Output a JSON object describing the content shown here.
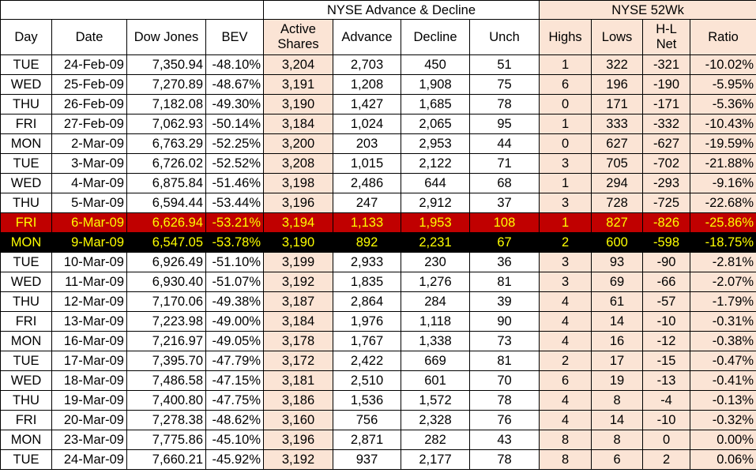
{
  "group_headers": {
    "blank": "",
    "advance_decline": "NYSE Advance & Decline",
    "week52": "NYSE 52Wk"
  },
  "columns": [
    "Day",
    "Date",
    "Dow Jones",
    "BEV",
    "Active Shares",
    "Advance",
    "Decline",
    "Unch",
    "Highs",
    "Lows",
    "H-L Net",
    "Ratio"
  ],
  "colors": {
    "peach": "#fbe4d5",
    "highlight_red": "#c00000",
    "highlight_black": "#000000",
    "highlight_text": "#ffff00"
  },
  "rows": [
    {
      "day": "TUE",
      "date": "24-Feb-09",
      "dow": "7,350.94",
      "bev": "-48.10%",
      "active": "3,204",
      "advance": "2,703",
      "decline": "450",
      "unch": "51",
      "highs": "1",
      "lows": "322",
      "net": "-321",
      "ratio": "-10.02%",
      "highlight": ""
    },
    {
      "day": "WED",
      "date": "25-Feb-09",
      "dow": "7,270.89",
      "bev": "-48.67%",
      "active": "3,191",
      "advance": "1,208",
      "decline": "1,908",
      "unch": "75",
      "highs": "6",
      "lows": "196",
      "net": "-190",
      "ratio": "-5.95%",
      "highlight": ""
    },
    {
      "day": "THU",
      "date": "26-Feb-09",
      "dow": "7,182.08",
      "bev": "-49.30%",
      "active": "3,190",
      "advance": "1,427",
      "decline": "1,685",
      "unch": "78",
      "highs": "0",
      "lows": "171",
      "net": "-171",
      "ratio": "-5.36%",
      "highlight": ""
    },
    {
      "day": "FRI",
      "date": "27-Feb-09",
      "dow": "7,062.93",
      "bev": "-50.14%",
      "active": "3,184",
      "advance": "1,024",
      "decline": "2,065",
      "unch": "95",
      "highs": "1",
      "lows": "333",
      "net": "-332",
      "ratio": "-10.43%",
      "highlight": ""
    },
    {
      "day": "MON",
      "date": "2-Mar-09",
      "dow": "6,763.29",
      "bev": "-52.25%",
      "active": "3,200",
      "advance": "203",
      "decline": "2,953",
      "unch": "44",
      "highs": "0",
      "lows": "627",
      "net": "-627",
      "ratio": "-19.59%",
      "highlight": ""
    },
    {
      "day": "TUE",
      "date": "3-Mar-09",
      "dow": "6,726.02",
      "bev": "-52.52%",
      "active": "3,208",
      "advance": "1,015",
      "decline": "2,122",
      "unch": "71",
      "highs": "3",
      "lows": "705",
      "net": "-702",
      "ratio": "-21.88%",
      "highlight": ""
    },
    {
      "day": "WED",
      "date": "4-Mar-09",
      "dow": "6,875.84",
      "bev": "-51.46%",
      "active": "3,198",
      "advance": "2,486",
      "decline": "644",
      "unch": "68",
      "highs": "1",
      "lows": "294",
      "net": "-293",
      "ratio": "-9.16%",
      "highlight": ""
    },
    {
      "day": "THU",
      "date": "5-Mar-09",
      "dow": "6,594.44",
      "bev": "-53.44%",
      "active": "3,196",
      "advance": "247",
      "decline": "2,912",
      "unch": "37",
      "highs": "3",
      "lows": "728",
      "net": "-725",
      "ratio": "-22.68%",
      "highlight": ""
    },
    {
      "day": "FRI",
      "date": "6-Mar-09",
      "dow": "6,626.94",
      "bev": "-53.21%",
      "active": "3,194",
      "advance": "1,133",
      "decline": "1,953",
      "unch": "108",
      "highs": "1",
      "lows": "827",
      "net": "-826",
      "ratio": "-25.86%",
      "highlight": "red"
    },
    {
      "day": "MON",
      "date": "9-Mar-09",
      "dow": "6,547.05",
      "bev": "-53.78%",
      "active": "3,190",
      "advance": "892",
      "decline": "2,231",
      "unch": "67",
      "highs": "2",
      "lows": "600",
      "net": "-598",
      "ratio": "-18.75%",
      "highlight": "black"
    },
    {
      "day": "TUE",
      "date": "10-Mar-09",
      "dow": "6,926.49",
      "bev": "-51.10%",
      "active": "3,199",
      "advance": "2,933",
      "decline": "230",
      "unch": "36",
      "highs": "3",
      "lows": "93",
      "net": "-90",
      "ratio": "-2.81%",
      "highlight": ""
    },
    {
      "day": "WED",
      "date": "11-Mar-09",
      "dow": "6,930.40",
      "bev": "-51.07%",
      "active": "3,192",
      "advance": "1,835",
      "decline": "1,276",
      "unch": "81",
      "highs": "3",
      "lows": "69",
      "net": "-66",
      "ratio": "-2.07%",
      "highlight": ""
    },
    {
      "day": "THU",
      "date": "12-Mar-09",
      "dow": "7,170.06",
      "bev": "-49.38%",
      "active": "3,187",
      "advance": "2,864",
      "decline": "284",
      "unch": "39",
      "highs": "4",
      "lows": "61",
      "net": "-57",
      "ratio": "-1.79%",
      "highlight": ""
    },
    {
      "day": "FRI",
      "date": "13-Mar-09",
      "dow": "7,223.98",
      "bev": "-49.00%",
      "active": "3,184",
      "advance": "1,976",
      "decline": "1,118",
      "unch": "90",
      "highs": "4",
      "lows": "14",
      "net": "-10",
      "ratio": "-0.31%",
      "highlight": ""
    },
    {
      "day": "MON",
      "date": "16-Mar-09",
      "dow": "7,216.97",
      "bev": "-49.05%",
      "active": "3,178",
      "advance": "1,767",
      "decline": "1,338",
      "unch": "73",
      "highs": "4",
      "lows": "16",
      "net": "-12",
      "ratio": "-0.38%",
      "highlight": ""
    },
    {
      "day": "TUE",
      "date": "17-Mar-09",
      "dow": "7,395.70",
      "bev": "-47.79%",
      "active": "3,172",
      "advance": "2,422",
      "decline": "669",
      "unch": "81",
      "highs": "2",
      "lows": "17",
      "net": "-15",
      "ratio": "-0.47%",
      "highlight": ""
    },
    {
      "day": "WED",
      "date": "18-Mar-09",
      "dow": "7,486.58",
      "bev": "-47.15%",
      "active": "3,181",
      "advance": "2,510",
      "decline": "601",
      "unch": "70",
      "highs": "6",
      "lows": "19",
      "net": "-13",
      "ratio": "-0.41%",
      "highlight": ""
    },
    {
      "day": "THU",
      "date": "19-Mar-09",
      "dow": "7,400.80",
      "bev": "-47.75%",
      "active": "3,186",
      "advance": "1,536",
      "decline": "1,572",
      "unch": "78",
      "highs": "4",
      "lows": "8",
      "net": "-4",
      "ratio": "-0.13%",
      "highlight": ""
    },
    {
      "day": "FRI",
      "date": "20-Mar-09",
      "dow": "7,278.38",
      "bev": "-48.62%",
      "active": "3,160",
      "advance": "756",
      "decline": "2,328",
      "unch": "76",
      "highs": "4",
      "lows": "14",
      "net": "-10",
      "ratio": "-0.32%",
      "highlight": ""
    },
    {
      "day": "MON",
      "date": "23-Mar-09",
      "dow": "7,775.86",
      "bev": "-45.10%",
      "active": "3,196",
      "advance": "2,871",
      "decline": "282",
      "unch": "43",
      "highs": "8",
      "lows": "8",
      "net": "0",
      "ratio": "0.00%",
      "highlight": ""
    },
    {
      "day": "TUE",
      "date": "24-Mar-09",
      "dow": "7,660.21",
      "bev": "-45.92%",
      "active": "3,192",
      "advance": "937",
      "decline": "2,177",
      "unch": "78",
      "highs": "8",
      "lows": "6",
      "net": "2",
      "ratio": "0.06%",
      "highlight": ""
    }
  ]
}
